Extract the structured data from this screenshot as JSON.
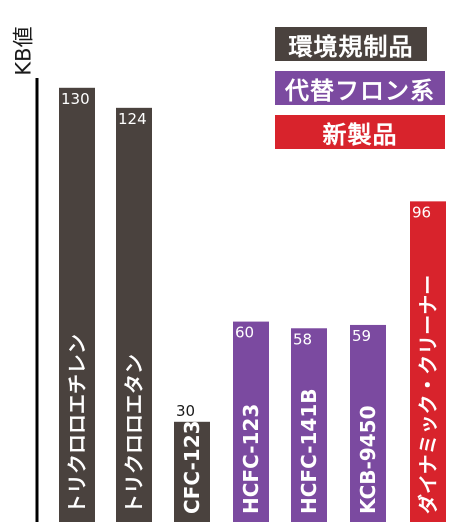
{
  "chart_data": {
    "type": "bar",
    "ylabel": "KB値",
    "ylim": [
      0,
      140
    ],
    "categories": [
      "トリクロロエチレン",
      "トリクロロエタン",
      "CFC-123",
      "HCFC-123",
      "HCFC-141B",
      "KCB-9450",
      "ダイナミック・クリーナー"
    ],
    "values": [
      130,
      124,
      30,
      60,
      58,
      59,
      96
    ],
    "groups": [
      "環境規制品",
      "環境規制品",
      "環境規制品",
      "代替フロン系",
      "代替フロン系",
      "代替フロン系",
      "新製品"
    ],
    "legend": [
      {
        "label": "環境規制品",
        "color": "#4a423e"
      },
      {
        "label": "代替フロン系",
        "color": "#7b4aa0"
      },
      {
        "label": "新製品",
        "color": "#d8232c"
      }
    ],
    "legend_placement": "top-right",
    "grid": false
  }
}
